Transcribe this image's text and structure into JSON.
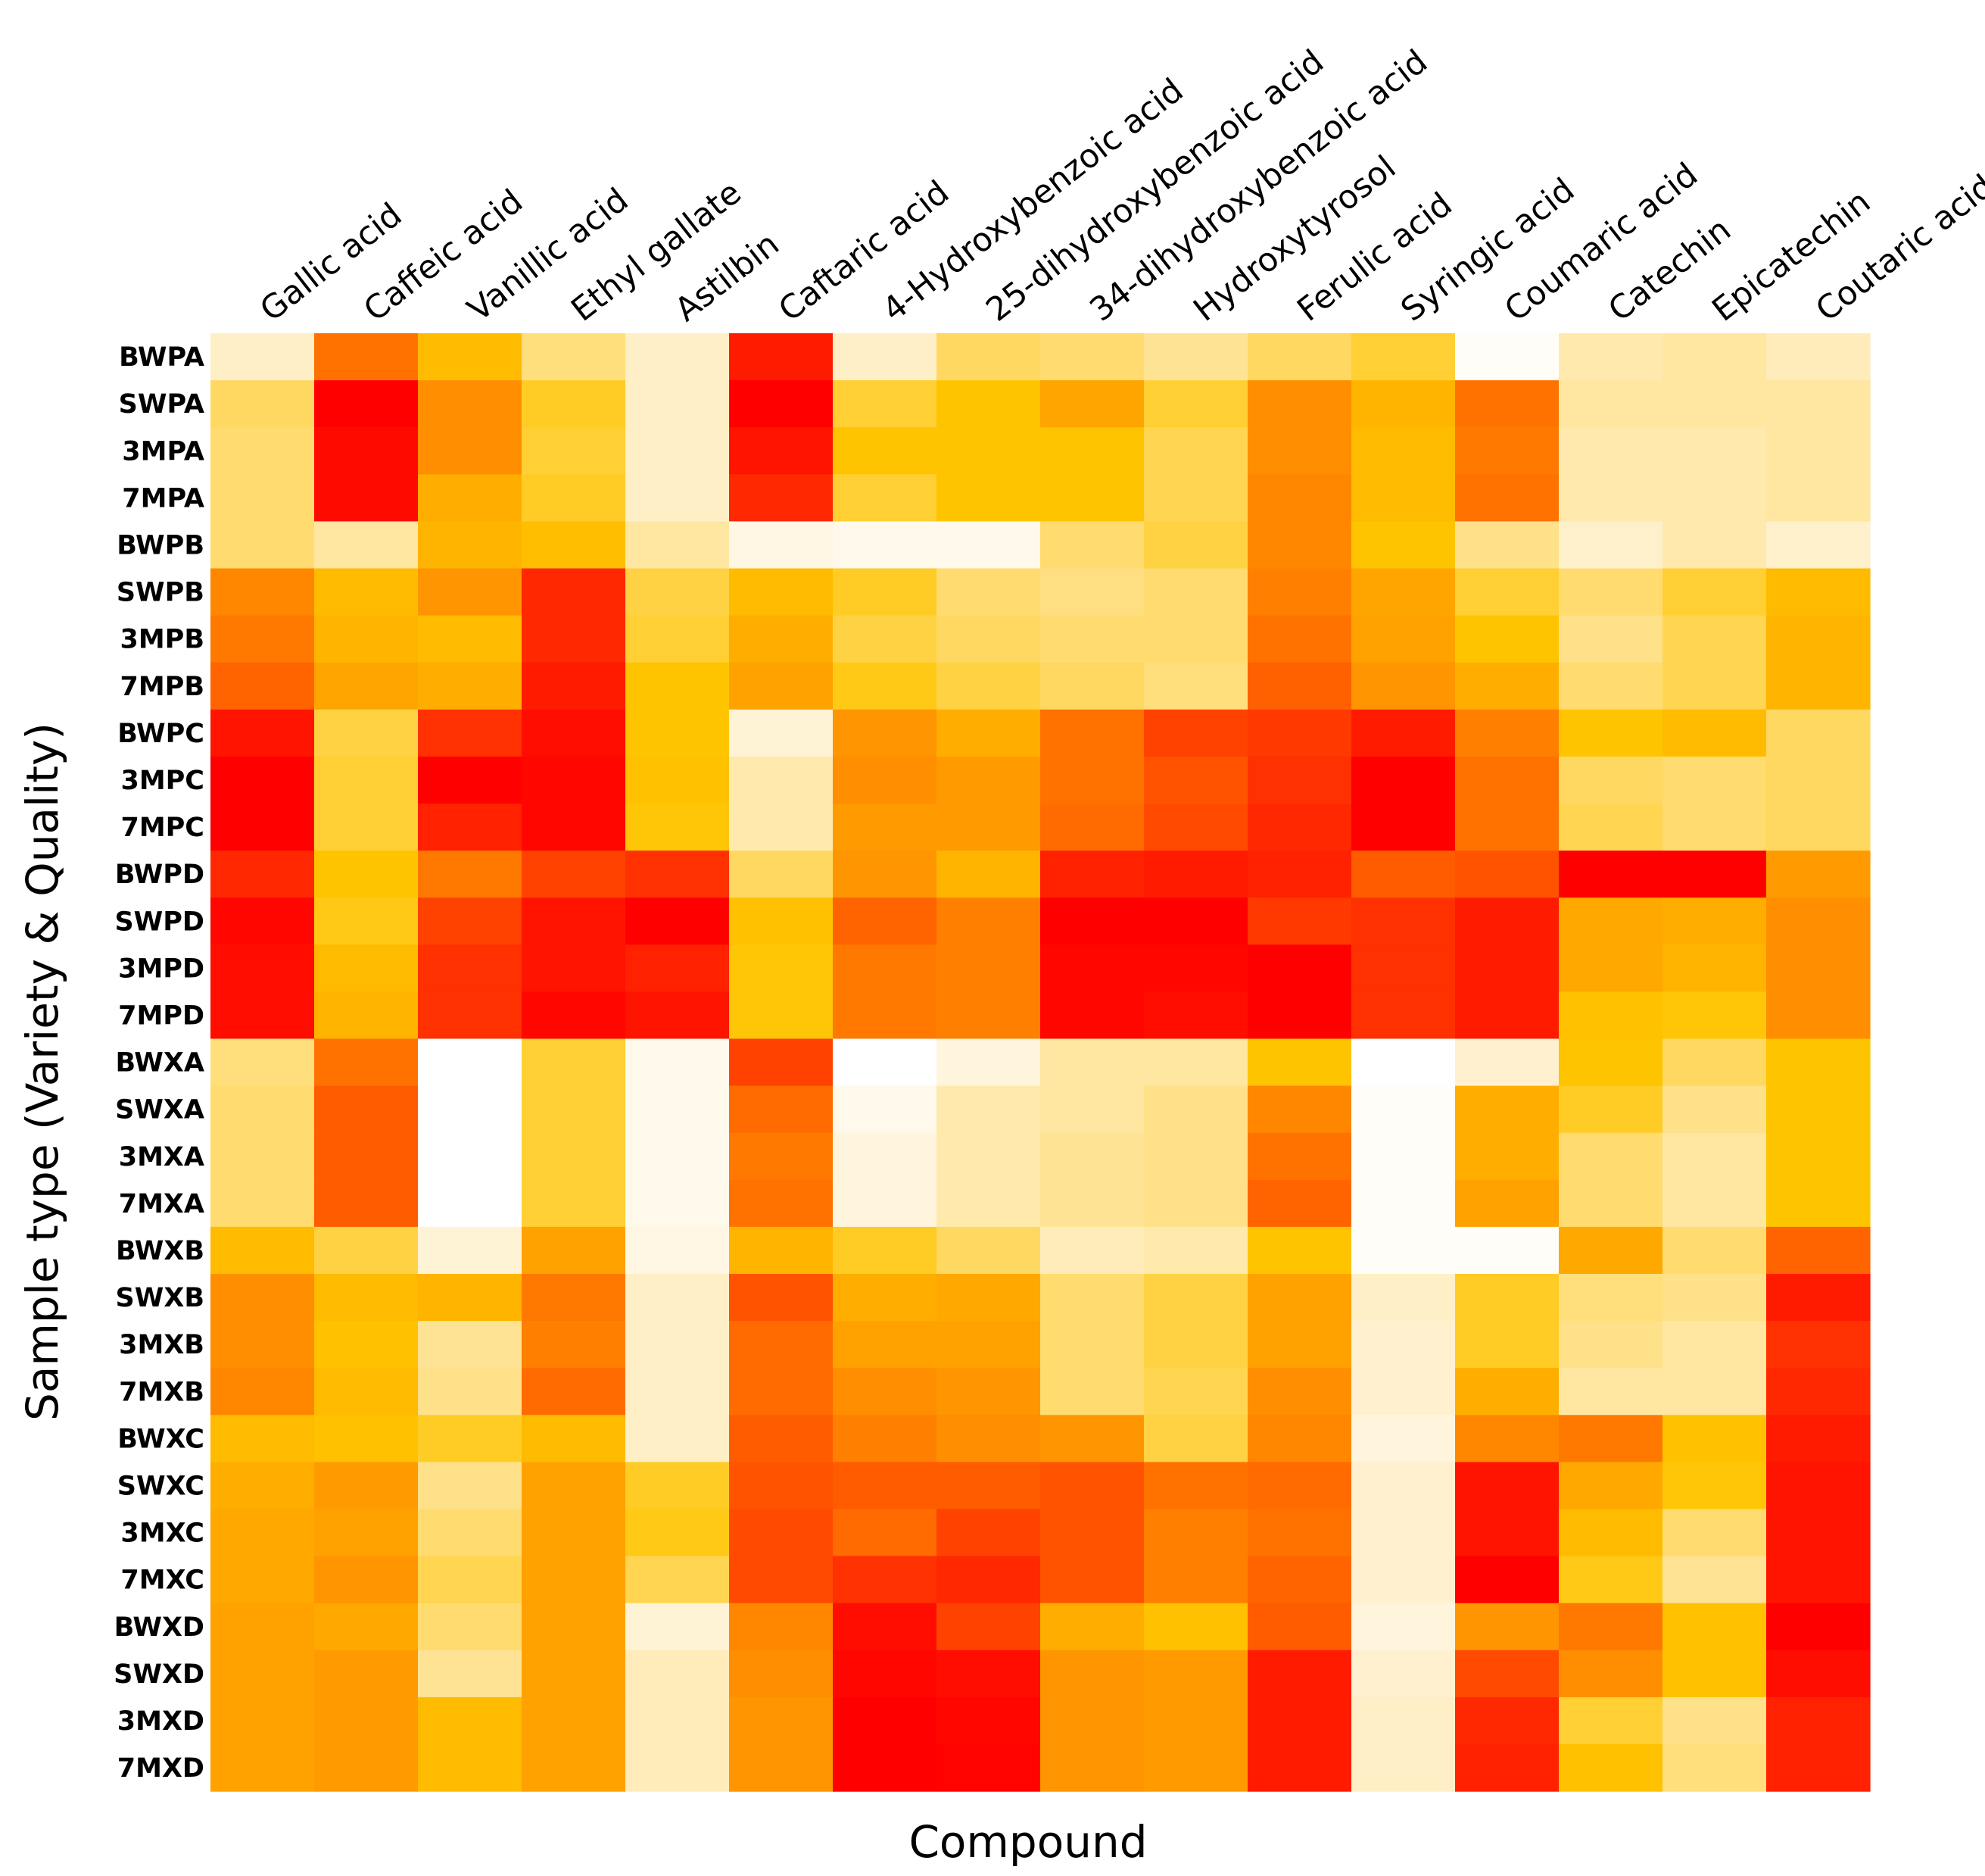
{
  "chart_data": {
    "type": "heatmap",
    "title": "",
    "xlabel": "Compound",
    "ylabel": "Sample type (Variety & Quality)",
    "columns": [
      "Gallic acid",
      "Caffeic acid",
      "Vanillic acid",
      "Ethyl gallate",
      "Astilbin",
      "Caftaric acid",
      "4-Hydroxybenzoic acid",
      "25-dihydroxybenzoic acid",
      "34-dihydroxybenzoic acid",
      "Hydroxytyrosol",
      "Ferulic  acid",
      "Syringic acid",
      "Coumaric  acid",
      "Catechin",
      "Epicatechin",
      "Coutaric acid"
    ],
    "rows": [
      "BWPA",
      "SWPA",
      "3MPA",
      "7MPA",
      "BWPB",
      "SWPB",
      "3MPB",
      "7MPB",
      "BWPC",
      "3MPC",
      "7MPC",
      "BWPD",
      "SWPD",
      "3MPD",
      "7MPD",
      "BWXA",
      "SWXA",
      "3MXA",
      "7MXA",
      "BWXB",
      "SWXB",
      "3MXB",
      "7MXB",
      "BWXC",
      "SWXC",
      "3MXC",
      "7MXC",
      "BWXD",
      "SWXD",
      "3MXD",
      "7MXD"
    ],
    "colorscale": {
      "type": "sequential",
      "description": "low = near white, mid = yellow/orange, high = red",
      "min": 0,
      "max": 1,
      "stops": [
        {
          "value": 0.0,
          "color": "#ffffff"
        },
        {
          "value": 0.15,
          "color": "#fff0cc"
        },
        {
          "value": 0.3,
          "color": "#ffdb70"
        },
        {
          "value": 0.45,
          "color": "#ffc400"
        },
        {
          "value": 0.6,
          "color": "#ff9500"
        },
        {
          "value": 0.75,
          "color": "#ff6000"
        },
        {
          "value": 0.88,
          "color": "#ff2800"
        },
        {
          "value": 1.0,
          "color": "#ff0000"
        }
      ]
    },
    "values": [
      [
        0.16,
        0.7,
        0.48,
        0.28,
        0.16,
        0.92,
        0.16,
        0.32,
        0.3,
        0.24,
        0.32,
        0.38,
        0.02,
        0.2,
        0.22,
        0.18
      ],
      [
        0.32,
        1.0,
        0.62,
        0.4,
        0.16,
        1.0,
        0.38,
        0.45,
        0.55,
        0.38,
        0.62,
        0.5,
        0.7,
        0.22,
        0.22,
        0.22
      ],
      [
        0.3,
        0.97,
        0.62,
        0.38,
        0.16,
        0.94,
        0.45,
        0.45,
        0.45,
        0.34,
        0.62,
        0.48,
        0.68,
        0.2,
        0.2,
        0.22
      ],
      [
        0.3,
        0.97,
        0.52,
        0.4,
        0.16,
        0.88,
        0.38,
        0.45,
        0.45,
        0.34,
        0.64,
        0.48,
        0.7,
        0.2,
        0.2,
        0.22
      ],
      [
        0.3,
        0.22,
        0.5,
        0.47,
        0.22,
        0.08,
        0.06,
        0.06,
        0.3,
        0.36,
        0.64,
        0.45,
        0.26,
        0.15,
        0.2,
        0.15
      ],
      [
        0.64,
        0.48,
        0.6,
        0.88,
        0.36,
        0.48,
        0.4,
        0.3,
        0.27,
        0.3,
        0.66,
        0.55,
        0.38,
        0.3,
        0.38,
        0.48
      ],
      [
        0.68,
        0.5,
        0.48,
        0.88,
        0.38,
        0.52,
        0.36,
        0.32,
        0.3,
        0.3,
        0.7,
        0.56,
        0.45,
        0.26,
        0.34,
        0.5
      ],
      [
        0.74,
        0.55,
        0.52,
        0.92,
        0.45,
        0.56,
        0.42,
        0.36,
        0.32,
        0.28,
        0.75,
        0.6,
        0.52,
        0.3,
        0.34,
        0.5
      ],
      [
        0.94,
        0.36,
        0.86,
        0.96,
        0.45,
        0.12,
        0.6,
        0.52,
        0.7,
        0.82,
        0.84,
        0.92,
        0.66,
        0.45,
        0.48,
        0.32
      ],
      [
        1.0,
        0.38,
        1.0,
        0.98,
        0.46,
        0.2,
        0.62,
        0.58,
        0.7,
        0.78,
        0.86,
        1.0,
        0.7,
        0.32,
        0.3,
        0.32
      ],
      [
        1.0,
        0.38,
        0.9,
        0.98,
        0.44,
        0.2,
        0.58,
        0.58,
        0.72,
        0.8,
        0.88,
        1.0,
        0.7,
        0.34,
        0.3,
        0.32
      ],
      [
        0.88,
        0.45,
        0.68,
        0.82,
        0.86,
        0.32,
        0.6,
        0.5,
        0.9,
        0.92,
        0.9,
        0.76,
        0.78,
        1.0,
        1.0,
        0.58
      ],
      [
        0.98,
        0.42,
        0.82,
        0.94,
        1.0,
        0.46,
        0.74,
        0.66,
        1.0,
        1.0,
        0.84,
        0.86,
        0.92,
        0.54,
        0.52,
        0.62
      ],
      [
        0.96,
        0.48,
        0.86,
        0.94,
        0.9,
        0.44,
        0.68,
        0.66,
        0.98,
        0.98,
        1.0,
        0.86,
        0.92,
        0.54,
        0.5,
        0.62
      ],
      [
        0.96,
        0.5,
        0.86,
        0.98,
        0.94,
        0.44,
        0.68,
        0.66,
        0.98,
        0.96,
        1.0,
        0.86,
        0.92,
        0.46,
        0.44,
        0.62
      ],
      [
        0.28,
        0.7,
        0.0,
        0.38,
        0.06,
        0.82,
        0.0,
        0.1,
        0.22,
        0.22,
        0.45,
        0.0,
        0.14,
        0.45,
        0.32,
        0.45
      ],
      [
        0.3,
        0.76,
        0.0,
        0.38,
        0.06,
        0.72,
        0.06,
        0.2,
        0.22,
        0.26,
        0.64,
        0.02,
        0.52,
        0.4,
        0.26,
        0.45
      ],
      [
        0.3,
        0.76,
        0.0,
        0.38,
        0.06,
        0.68,
        0.1,
        0.2,
        0.24,
        0.26,
        0.7,
        0.02,
        0.52,
        0.3,
        0.22,
        0.45
      ],
      [
        0.3,
        0.76,
        0.0,
        0.38,
        0.06,
        0.7,
        0.1,
        0.2,
        0.24,
        0.26,
        0.74,
        0.02,
        0.56,
        0.3,
        0.22,
        0.45
      ],
      [
        0.48,
        0.36,
        0.12,
        0.56,
        0.08,
        0.5,
        0.4,
        0.32,
        0.18,
        0.2,
        0.45,
        0.02,
        0.02,
        0.54,
        0.3,
        0.74
      ],
      [
        0.62,
        0.48,
        0.5,
        0.68,
        0.16,
        0.78,
        0.52,
        0.54,
        0.3,
        0.36,
        0.56,
        0.16,
        0.4,
        0.28,
        0.26,
        0.92
      ],
      [
        0.62,
        0.46,
        0.24,
        0.66,
        0.16,
        0.72,
        0.56,
        0.56,
        0.3,
        0.36,
        0.56,
        0.14,
        0.4,
        0.26,
        0.22,
        0.86
      ],
      [
        0.64,
        0.48,
        0.26,
        0.72,
        0.16,
        0.72,
        0.62,
        0.6,
        0.3,
        0.34,
        0.62,
        0.14,
        0.52,
        0.22,
        0.22,
        0.88
      ],
      [
        0.48,
        0.46,
        0.4,
        0.48,
        0.16,
        0.76,
        0.66,
        0.62,
        0.6,
        0.36,
        0.64,
        0.1,
        0.64,
        0.68,
        0.46,
        0.92
      ],
      [
        0.52,
        0.58,
        0.26,
        0.56,
        0.4,
        0.78,
        0.76,
        0.76,
        0.78,
        0.7,
        0.72,
        0.14,
        0.94,
        0.54,
        0.44,
        0.94
      ],
      [
        0.54,
        0.56,
        0.3,
        0.56,
        0.42,
        0.8,
        0.72,
        0.82,
        0.78,
        0.66,
        0.7,
        0.14,
        0.94,
        0.48,
        0.3,
        0.94
      ],
      [
        0.54,
        0.6,
        0.34,
        0.56,
        0.34,
        0.8,
        0.86,
        0.88,
        0.78,
        0.66,
        0.74,
        0.14,
        1.0,
        0.42,
        0.24,
        0.94
      ],
      [
        0.56,
        0.54,
        0.3,
        0.56,
        0.12,
        0.64,
        0.96,
        0.82,
        0.52,
        0.46,
        0.76,
        0.1,
        0.6,
        0.68,
        0.46,
        1.0
      ],
      [
        0.56,
        0.58,
        0.24,
        0.56,
        0.18,
        0.62,
        0.98,
        0.96,
        0.6,
        0.58,
        0.92,
        0.14,
        0.8,
        0.62,
        0.46,
        0.96
      ],
      [
        0.56,
        0.58,
        0.48,
        0.56,
        0.18,
        0.6,
        1.0,
        0.98,
        0.6,
        0.58,
        0.92,
        0.16,
        0.88,
        0.38,
        0.26,
        0.9
      ],
      [
        0.56,
        0.58,
        0.48,
        0.56,
        0.18,
        0.6,
        1.0,
        0.99,
        0.6,
        0.58,
        0.92,
        0.16,
        0.9,
        0.46,
        0.28,
        0.9
      ]
    ]
  }
}
